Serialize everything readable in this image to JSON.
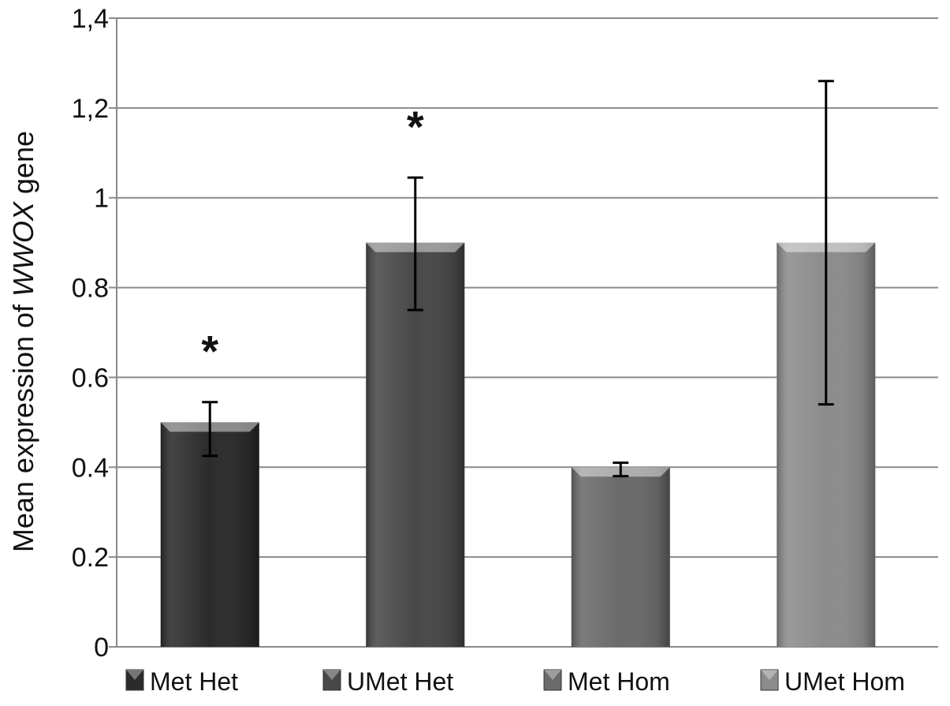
{
  "chart_data": {
    "type": "bar",
    "title": "",
    "ylabel_parts": [
      "Mean expression of ",
      "WWOX",
      " gene"
    ],
    "xlabel": "",
    "ylim": [
      0,
      1.4
    ],
    "grid": true,
    "legend_position": "bottom",
    "y_ticks": [
      "0",
      "0.2",
      "0.4",
      "0.6",
      "0.8",
      "1",
      "1,2",
      "1,4"
    ],
    "y_tick_values": [
      0,
      0.2,
      0.4,
      0.6,
      0.8,
      1.0,
      1.2,
      1.4
    ],
    "categories": [
      "Met Het",
      "UMet Het",
      "Met Hom",
      "UMet Hom"
    ],
    "values": [
      0.5,
      0.9,
      0.4,
      0.9
    ],
    "error_bars": [
      [
        0.425,
        0.545
      ],
      [
        0.75,
        1.045
      ],
      [
        0.38,
        0.41
      ],
      [
        0.54,
        1.26
      ]
    ],
    "significance": [
      "*",
      "*",
      "",
      ""
    ],
    "colors": [
      "#2b2b2b",
      "#484848",
      "#6a6a6a",
      "#8c8c8c"
    ]
  }
}
